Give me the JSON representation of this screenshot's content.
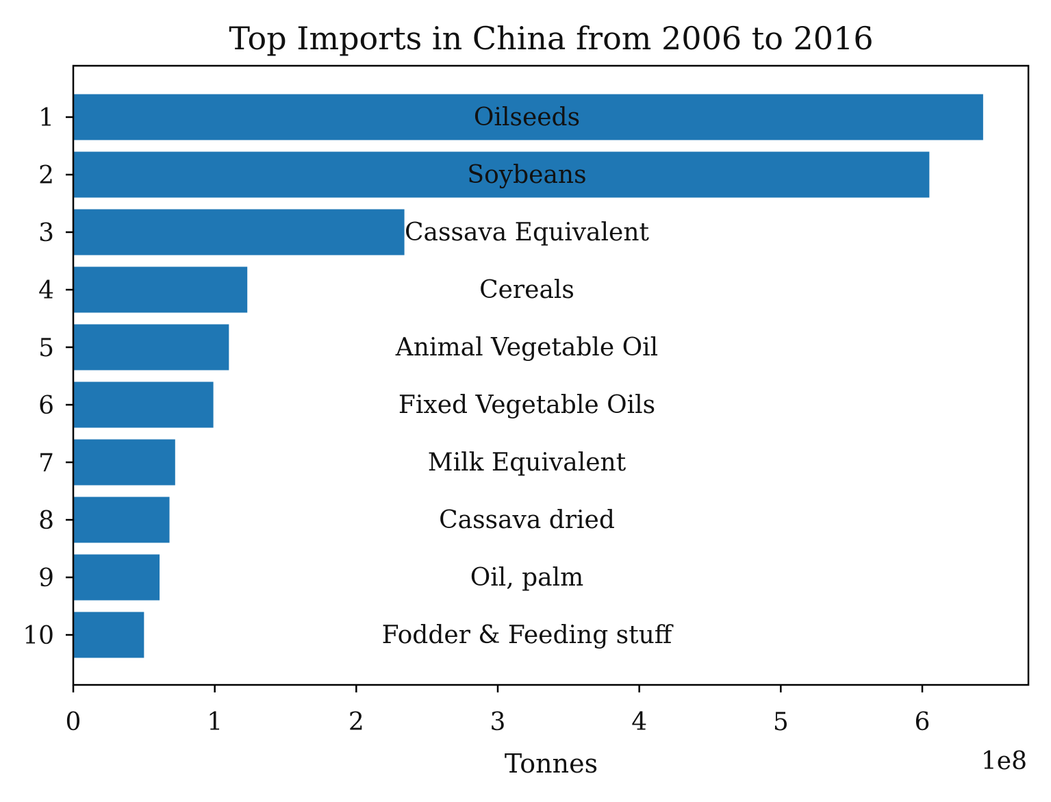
{
  "chart_data": {
    "type": "bar",
    "orientation": "horizontal",
    "title": "Top Imports in China from 2006 to 2016",
    "xlabel": "Tonnes",
    "ylabel": "",
    "x_offset_text": "1e8",
    "categories": [
      "1",
      "2",
      "3",
      "4",
      "5",
      "6",
      "7",
      "8",
      "9",
      "10"
    ],
    "bar_labels": [
      "Oilseeds",
      "Soybeans",
      "Cassava Equivalent",
      "Cereals",
      "Animal Vegetable Oil",
      "Fixed Vegetable Oils",
      "Milk Equivalent",
      "Cassava dried",
      "Oil, palm",
      "Fodder & Feeding stuff"
    ],
    "values": [
      643000000,
      605000000,
      234000000,
      123000000,
      110000000,
      99000000,
      72000000,
      68000000,
      61000000,
      50000000
    ],
    "xlim": [
      0,
      675000000
    ],
    "xticks": [
      0,
      100000000,
      200000000,
      300000000,
      400000000,
      500000000,
      600000000
    ],
    "xtick_labels": [
      "0",
      "1",
      "2",
      "3",
      "4",
      "5",
      "6"
    ],
    "grid": false,
    "legend": "none",
    "colors": {
      "bar": "#1f77b4"
    }
  }
}
